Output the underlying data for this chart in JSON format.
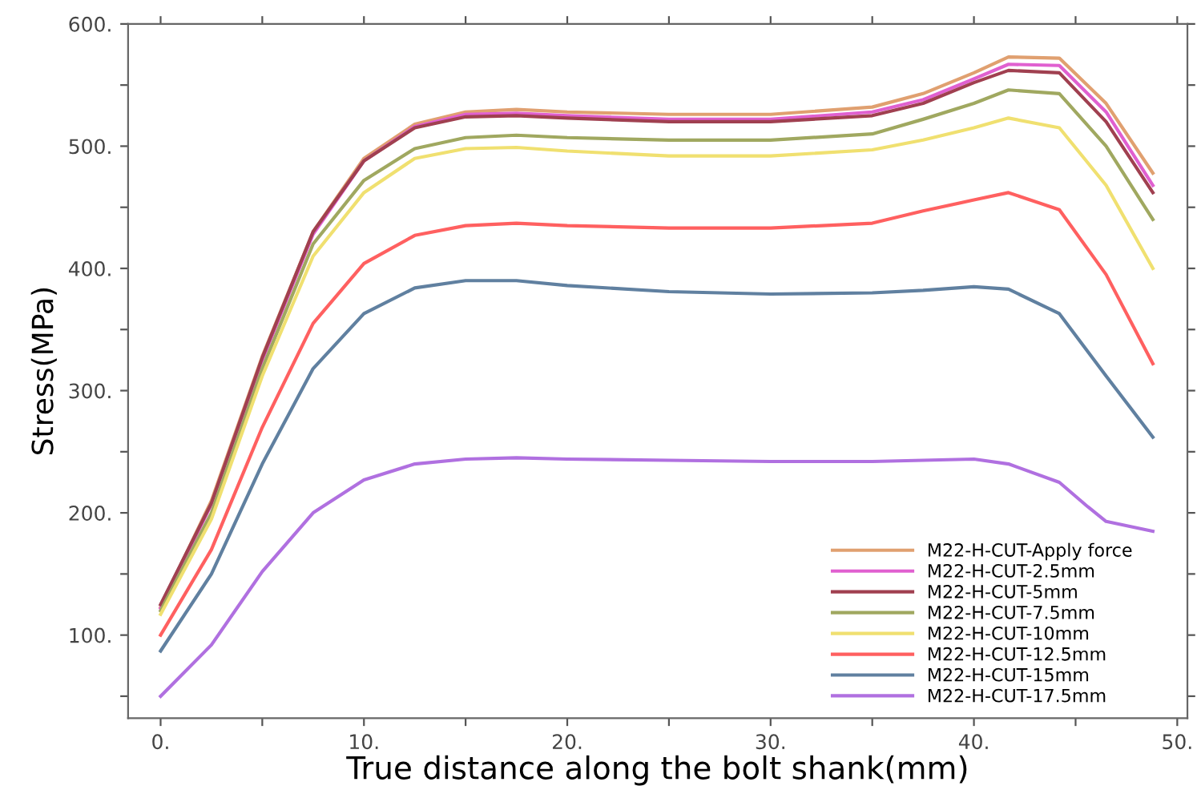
{
  "chart_data": {
    "type": "line",
    "xlabel": "True distance along the bolt shank(mm)",
    "ylabel": "Stress(MPa)",
    "x": [
      0,
      2.5,
      5,
      7.5,
      10,
      12.5,
      15,
      17.5,
      20,
      25,
      30,
      35,
      37.5,
      40,
      41.7,
      44.2,
      46.5,
      48.8
    ],
    "series": [
      {
        "name": "M22-H-CUT-Apply force",
        "color": "#e0a070",
        "values": [
          123,
          210,
          328,
          430,
          490,
          518,
          528,
          530,
          528,
          526,
          526,
          532,
          543,
          560,
          573,
          572,
          535,
          478
        ]
      },
      {
        "name": "M22-H-CUT-2.5mm",
        "color": "#e060d0",
        "values": [
          122,
          207,
          325,
          428,
          488,
          516,
          526,
          527,
          525,
          522,
          522,
          528,
          538,
          555,
          567,
          566,
          528,
          468
        ]
      },
      {
        "name": "M22-H-CUT-5mm",
        "color": "#a04050",
        "values": [
          125,
          208,
          327,
          430,
          488,
          515,
          524,
          525,
          523,
          520,
          520,
          525,
          535,
          552,
          562,
          560,
          520,
          462
        ]
      },
      {
        "name": "M22-H-CUT-7.5mm",
        "color": "#a0a860",
        "values": [
          120,
          200,
          318,
          420,
          472,
          498,
          507,
          509,
          507,
          505,
          505,
          510,
          522,
          535,
          546,
          543,
          500,
          440
        ]
      },
      {
        "name": "M22-H-CUT-10mm",
        "color": "#f0e070",
        "values": [
          117,
          195,
          312,
          410,
          462,
          490,
          498,
          499,
          496,
          492,
          492,
          497,
          505,
          515,
          523,
          515,
          468,
          400
        ]
      },
      {
        "name": "M22-H-CUT-12.5mm",
        "color": "#ff6060",
        "values": [
          100,
          170,
          270,
          355,
          404,
          427,
          435,
          437,
          435,
          433,
          433,
          437,
          447,
          456,
          462,
          448,
          395,
          322
        ]
      },
      {
        "name": "M22-H-CUT-15mm",
        "color": "#6080a0",
        "values": [
          87,
          150,
          240,
          318,
          363,
          384,
          390,
          390,
          386,
          381,
          379,
          380,
          382,
          385,
          383,
          363,
          312,
          262
        ]
      },
      {
        "name": "M22-H-CUT-17.5mm",
        "color": "#b070e0",
        "x": [
          0,
          2.5,
          5,
          7.5,
          10,
          12.5,
          15,
          17.5,
          20,
          25,
          30,
          35,
          40,
          41.7,
          44.2,
          45.6,
          46.5,
          48.8
        ],
        "values": [
          50,
          92,
          152,
          200,
          227,
          240,
          244,
          245,
          244,
          243,
          242,
          242,
          244,
          240,
          225,
          205,
          193,
          185
        ]
      }
    ],
    "xlim": [
      -1.6,
      50.5
    ],
    "ylim": [
      32,
      600
    ],
    "xticks": [
      {
        "value": 0,
        "label": "0."
      },
      {
        "value": 5,
        "label": null
      },
      {
        "value": 10,
        "label": "10."
      },
      {
        "value": 15,
        "label": null
      },
      {
        "value": 20,
        "label": "20."
      },
      {
        "value": 25,
        "label": null
      },
      {
        "value": 30,
        "label": "30."
      },
      {
        "value": 35,
        "label": null
      },
      {
        "value": 40,
        "label": "40."
      },
      {
        "value": 45,
        "label": null
      },
      {
        "value": 50,
        "label": "50."
      }
    ],
    "yticks": [
      {
        "value": 50,
        "label": null
      },
      {
        "value": 100,
        "label": "100."
      },
      {
        "value": 150,
        "label": null
      },
      {
        "value": 200,
        "label": "200."
      },
      {
        "value": 250,
        "label": null
      },
      {
        "value": 300,
        "label": "300."
      },
      {
        "value": 350,
        "label": null
      },
      {
        "value": 400,
        "label": "400."
      },
      {
        "value": 450,
        "label": null
      },
      {
        "value": 500,
        "label": "500."
      },
      {
        "value": 550,
        "label": null
      },
      {
        "value": 600,
        "label": "600."
      }
    ],
    "grid": false,
    "legend": "bottom right",
    "marker": "none",
    "line_style": "solid"
  }
}
